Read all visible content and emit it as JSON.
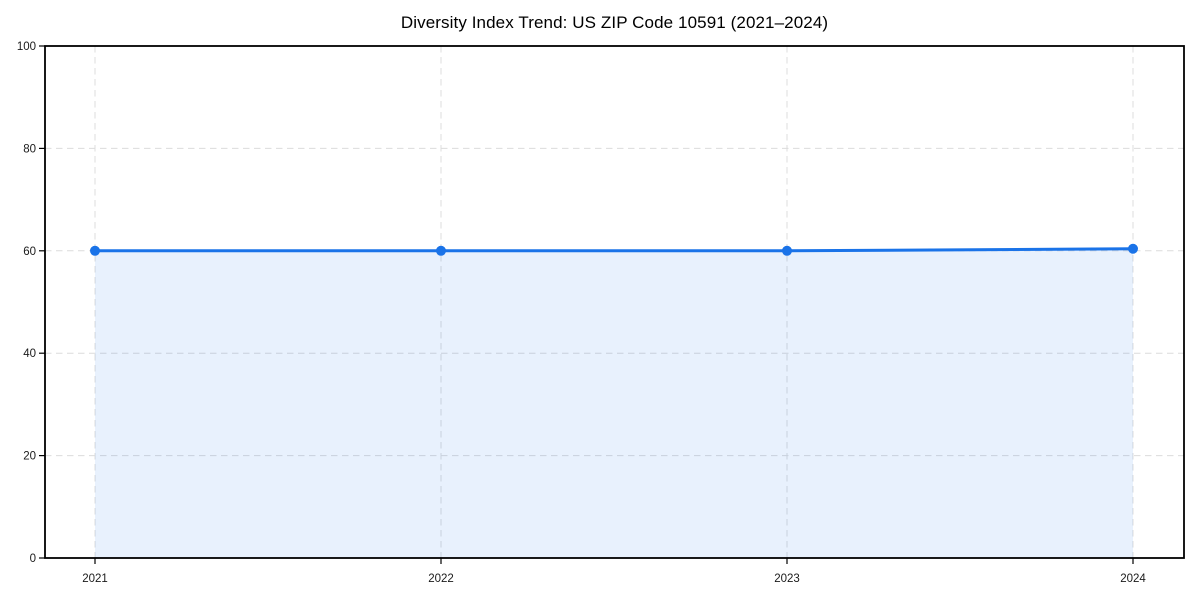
{
  "chart_data": {
    "type": "line",
    "title": "Diversity Index Trend: US ZIP Code 10591 (2021–2024)",
    "x": [
      2021,
      2022,
      2023,
      2024
    ],
    "xticks": [
      "2021",
      "2022",
      "2023",
      "2024"
    ],
    "series": [
      {
        "name": "Diversity Index",
        "values": [
          60.0,
          60.0,
          60.0,
          60.4
        ]
      }
    ],
    "xlabel": "",
    "ylabel": "",
    "ylim": [
      0,
      100
    ],
    "yticks": [
      0,
      20,
      40,
      60,
      80,
      100
    ],
    "ytick_labels": [
      "0",
      "20",
      "40",
      "60",
      "80",
      "100"
    ],
    "grid": true,
    "grid_style": "dashed",
    "legend": false,
    "area_fill": true,
    "marker": "circle",
    "colors": {
      "line": "#1a73e8",
      "fill": "#1a73e8",
      "grid": "#dcdcdc",
      "axis": "#000000",
      "tick_text": "#1a1a1a"
    }
  }
}
